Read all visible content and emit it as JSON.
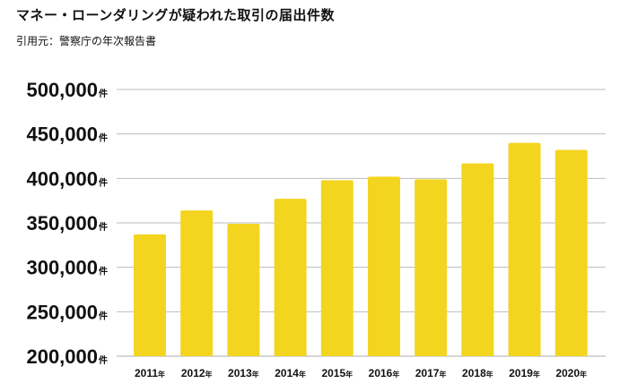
{
  "header": {
    "title": "マネー・ローンダリングが疑われた取引の届出件数",
    "source": "引用元：警察庁の年次報告書"
  },
  "chart_data": {
    "type": "bar",
    "categories": [
      "2011",
      "2012",
      "2013",
      "2014",
      "2015",
      "2016",
      "2017",
      "2018",
      "2019",
      "2020"
    ],
    "category_suffix": "年",
    "values": [
      337000,
      364000,
      349000,
      377000,
      398000,
      402000,
      399000,
      417000,
      440000,
      432000
    ],
    "ylim": [
      200000,
      500000
    ],
    "yticks": [
      200000,
      250000,
      300000,
      350000,
      400000,
      450000,
      500000
    ],
    "ytick_labels": [
      "200,000",
      "250,000",
      "300,000",
      "350,000",
      "400,000",
      "450,000",
      "500,000"
    ],
    "ytick_suffix": "件",
    "grid": true,
    "bar_color": "#f3d520",
    "grid_color": "#bdbdbd"
  }
}
